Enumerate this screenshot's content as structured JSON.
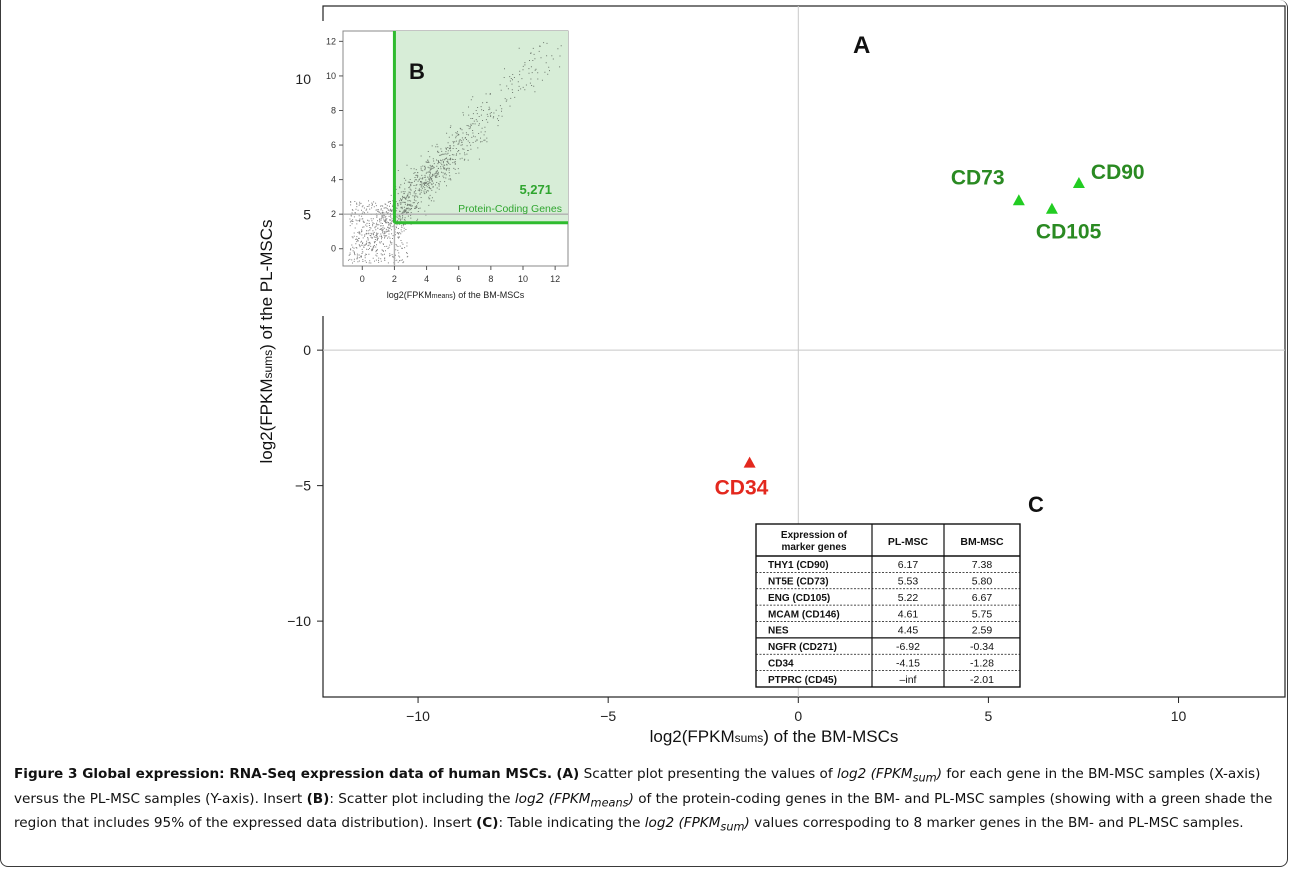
{
  "chart_data": [
    {
      "type": "scatter",
      "panel": "A",
      "xlabel": "log2(FPKMsums) of the BM-MSCs",
      "ylabel": "log2(FPKMsums) of the PL-MSCs",
      "xlim": [
        -12.5,
        12.8
      ],
      "ylim": [
        -12.8,
        12.7
      ],
      "xticks": [
        "−10",
        "−5",
        "0",
        "5",
        "10"
      ],
      "xtick_values": [
        -10,
        -5,
        0,
        5,
        10
      ],
      "yticks": [
        "10",
        "5",
        "0",
        "−5",
        "−10"
      ],
      "ytick_values": [
        10,
        5,
        0,
        -5,
        -10
      ],
      "reference_lines": {
        "x": 0,
        "y": 0
      },
      "grid": false,
      "markers": [
        {
          "label": "CD73",
          "x": 5.8,
          "y": 5.53,
          "color": "#1a8a1a",
          "marker": "triangle"
        },
        {
          "label": "CD90",
          "x": 7.38,
          "y": 6.17,
          "color": "#1a8a1a",
          "marker": "triangle"
        },
        {
          "label": "CD105",
          "x": 6.67,
          "y": 5.22,
          "color": "#1a8a1a",
          "marker": "triangle"
        },
        {
          "label": "CD34",
          "x": -1.28,
          "y": -4.15,
          "color": "#e3281e",
          "marker": "triangle"
        }
      ],
      "point_cloud": {
        "description": "approx. 15000 gene points concentrated along y = x",
        "color": "#000000"
      }
    },
    {
      "type": "scatter",
      "panel": "B",
      "xlabel": "log2(FPKMmeans) of the BM-MSCs",
      "xlim": [
        -1.2,
        12.8
      ],
      "ylim": [
        -1.0,
        12.6
      ],
      "xticks": [
        "0",
        "2",
        "4",
        "6",
        "8",
        "10",
        "12"
      ],
      "xtick_values": [
        0,
        2,
        4,
        6,
        8,
        10,
        12
      ],
      "yticks": [
        "12",
        "10",
        "8",
        "6",
        "4",
        "2",
        "0"
      ],
      "ytick_values": [
        12,
        10,
        8,
        6,
        4,
        2,
        0
      ],
      "reference_lines": {
        "x": 2,
        "y": 2
      },
      "shaded_region": {
        "x_min": 2,
        "y_min": 1.5,
        "color": "#d7edd7"
      },
      "annotation_value": "5,271",
      "annotation_text": "Protein-Coding Genes",
      "grid": false
    },
    {
      "type": "table",
      "panel": "C",
      "columns": [
        "Expression of marker genes",
        "PL-MSC",
        "BM-MSC"
      ],
      "rows": [
        [
          "THY1 (CD90)",
          "6.17",
          "7.38"
        ],
        [
          "NT5E (CD73)",
          "5.53",
          "5.80"
        ],
        [
          "ENG (CD105)",
          "5.22",
          "6.67"
        ],
        [
          "MCAM (CD146)",
          "4.61",
          "5.75"
        ],
        [
          "NES",
          "4.45",
          "2.59"
        ],
        [
          "NGFR (CD271)",
          "-6.92",
          "-0.34"
        ],
        [
          "CD34",
          "-4.15",
          "-1.28"
        ],
        [
          "PTPRC (CD45)",
          "–inf",
          "-2.01"
        ]
      ]
    }
  ],
  "panels": {
    "a": "A",
    "b": "B",
    "c": "C"
  },
  "axis_title_sub": "sums",
  "inset_axis_sub": "means",
  "table_header": {
    "line1": "Expression of",
    "line2": "marker genes"
  },
  "caption": {
    "title": "Figure 3 Global expression: RNA-Seq expression data of human MSCs.",
    "a_tag": "(A)",
    "a_text_1": " Scatter plot presenting the values of ",
    "term_sum_prefix": "log2 (FPKM",
    "term_sum_sub": "sum",
    "term_close": ")",
    "a_text_2": " for each gene in the BM-MSC samples (X-axis) versus the PL-MSC samples (Y-axis). Insert ",
    "b_tag": "(B)",
    "b_text_1": ": Scatter plot including the ",
    "term_means_prefix": "log2 (FPKM",
    "term_means_sub": "means",
    "b_text_2": " of the protein-coding genes in the BM- and PL-MSC samples (showing with a green shade the region that includes 95% of the expressed data distribution). Insert ",
    "c_tag": "(C)",
    "c_text_1": ": Table indicating the ",
    "c_text_2": " values correspoding to 8 marker genes in the BM- and PL-MSC samples."
  }
}
